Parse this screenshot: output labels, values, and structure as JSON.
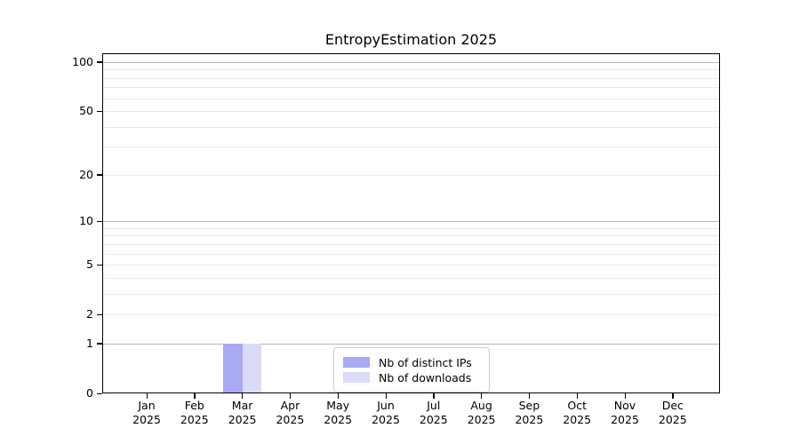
{
  "chart_data": {
    "type": "bar",
    "title": "EntropyEstimation 2025",
    "categories": [
      "Jan",
      "Feb",
      "Mar",
      "Apr",
      "May",
      "Jun",
      "Jul",
      "Aug",
      "Sep",
      "Oct",
      "Nov",
      "Dec"
    ],
    "x_year": "2025",
    "series": [
      {
        "name": "Nb of distinct IPs",
        "color": "#a9aaf3",
        "values": [
          0,
          0,
          1,
          0,
          0,
          0,
          0,
          0,
          0,
          0,
          0,
          0
        ]
      },
      {
        "name": "Nb of downloads",
        "color": "#dbdbf8",
        "values": [
          0,
          0,
          1,
          0,
          0,
          0,
          0,
          0,
          0,
          0,
          0,
          0
        ]
      }
    ],
    "y_axis": {
      "scale": "log1p",
      "tick_values": [
        0,
        1,
        2,
        5,
        10,
        20,
        50,
        100
      ],
      "tick_labels": [
        "0",
        "1",
        "2",
        "5",
        "10",
        "20",
        "50",
        "100"
      ],
      "major_grid": [
        1,
        10,
        100
      ],
      "minor_grid": [
        2,
        3,
        4,
        5,
        6,
        7,
        8,
        9,
        20,
        30,
        40,
        50,
        60,
        70,
        80,
        90
      ],
      "ylim": [
        0,
        113
      ]
    },
    "legend": {
      "position": "lower center"
    },
    "colors": {
      "major_grid": "#b5b5b5",
      "minor_grid": "#eaeaea",
      "spine": "#000000",
      "background": "#ffffff"
    }
  }
}
